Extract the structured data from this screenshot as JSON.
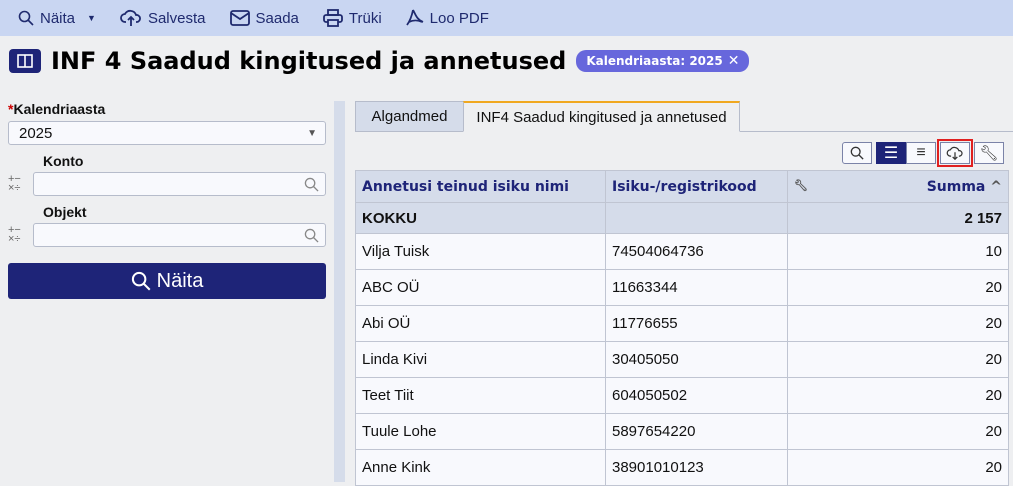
{
  "toolbar": {
    "show": "Näita",
    "save": "Salvesta",
    "send": "Saada",
    "print": "Trüki",
    "pdf": "Loo PDF"
  },
  "page": {
    "title": "INF 4 Saadud kingitused ja annetused",
    "filter_badge": "Kalendriaasta: 2025"
  },
  "filters": {
    "year_label": "Kalendriaasta",
    "year_value": "2025",
    "account_label": "Konto",
    "account_value": "",
    "object_label": "Objekt",
    "object_value": "",
    "show_button": "Näita"
  },
  "tabs": [
    {
      "label": "Algandmed",
      "active": false
    },
    {
      "label": "INF4 Saadud kingitused ja annetused",
      "active": true
    }
  ],
  "table": {
    "columns": [
      "Annetusi teinud isiku nimi",
      "Isiku-/registrikood",
      "Summa"
    ],
    "total": {
      "label": "KOKKU",
      "code": "",
      "sum": "2 157"
    },
    "rows": [
      [
        "Vilja Tuisk",
        "74504064736",
        "10"
      ],
      [
        "ABC OÜ",
        "11663344",
        "20"
      ],
      [
        "Abi OÜ",
        "11776655",
        "20"
      ],
      [
        "Linda Kivi",
        "30405050",
        "20"
      ],
      [
        "Teet Tiit",
        "604050502",
        "20"
      ],
      [
        "Tuule Lohe",
        "5897654220",
        "20"
      ],
      [
        "Anne Kink",
        "38901010123",
        "20"
      ]
    ]
  },
  "colors": {
    "toolbar": "#c9d6f2",
    "primary": "#1e2478",
    "badge": "#6767dc",
    "active_tab_accent": "#f0a820",
    "highlight": "#e02020"
  }
}
